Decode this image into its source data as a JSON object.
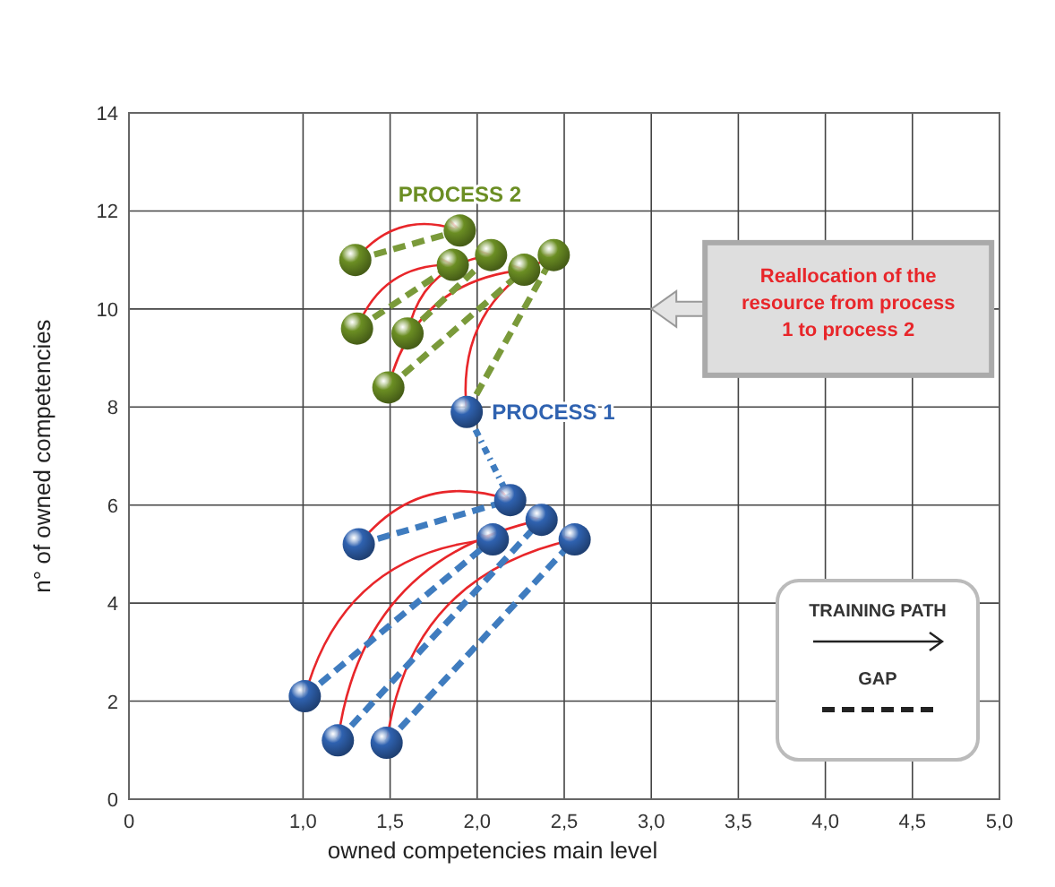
{
  "chart_data": {
    "type": "scatter",
    "xlabel": "owned competencies main level",
    "ylabel": "n° of owned competencies",
    "xlim": [
      0,
      5
    ],
    "xticks": [
      0,
      {
        "value": 1,
        "label": "1,0"
      },
      {
        "value": 1.5,
        "label": "1,5"
      },
      {
        "value": 2,
        "label": "2,0"
      },
      {
        "value": 2.5,
        "label": "2,5"
      },
      {
        "value": 3,
        "label": "3,0"
      },
      {
        "value": 3.5,
        "label": "3,5"
      },
      {
        "value": 4,
        "label": "4,0"
      },
      {
        "value": 4.5,
        "label": "4,5"
      },
      {
        "value": 5,
        "label": "5,0"
      }
    ],
    "ylim": [
      0,
      14
    ],
    "yticks": [
      0,
      2,
      4,
      6,
      8,
      10,
      12,
      14
    ],
    "grid": true,
    "annotations": [
      "Reallocation of the resource from process 1 to process 2",
      "TRAINING PATH",
      "GAP"
    ],
    "series": [
      {
        "type": "line",
        "line_style": "dashed",
        "color": "#7a9a3a",
        "x": [
          1.3,
          1.9,
          null,
          1.31,
          1.86,
          null,
          1.6,
          2.08,
          null,
          1.49,
          2.27,
          null,
          1.94,
          2.44
        ],
        "values": [
          11.0,
          11.6,
          null,
          9.6,
          10.9,
          null,
          9.5,
          11.1,
          null,
          8.4,
          10.8,
          null,
          7.9,
          11.1
        ]
      },
      {
        "type": "line",
        "line_style": "dashed",
        "color": "#3f7cbf",
        "x": [
          1.32,
          2.19,
          null,
          1.01,
          2.09,
          null,
          1.2,
          2.37,
          null,
          1.48,
          2.56
        ],
        "values": [
          5.2,
          6.1,
          null,
          2.1,
          5.3,
          null,
          1.2,
          5.7,
          null,
          1.15,
          5.3
        ]
      },
      {
        "type": "line",
        "line_style": "dotted",
        "color": "#3f7cbf",
        "x": [
          1.94,
          2.19
        ],
        "values": [
          7.9,
          6.1
        ]
      },
      {
        "name": "PROCESS 2",
        "color": "#6b8e23",
        "marker": "circle",
        "x": [
          1.3,
          1.9,
          1.86,
          2.08,
          2.27,
          2.44,
          1.31,
          1.6,
          1.49
        ],
        "values": [
          11.0,
          11.6,
          10.9,
          11.1,
          10.8,
          11.1,
          9.6,
          9.5,
          8.4
        ]
      },
      {
        "name": "PROCESS 1",
        "color": "#2f62b0",
        "marker": "circle",
        "x": [
          1.94,
          2.19,
          2.09,
          2.37,
          2.56,
          1.32,
          1.01,
          1.2,
          1.48
        ],
        "values": [
          7.9,
          6.1,
          5.3,
          5.7,
          5.3,
          5.2,
          2.1,
          1.2,
          1.15
        ]
      }
    ]
  }
}
